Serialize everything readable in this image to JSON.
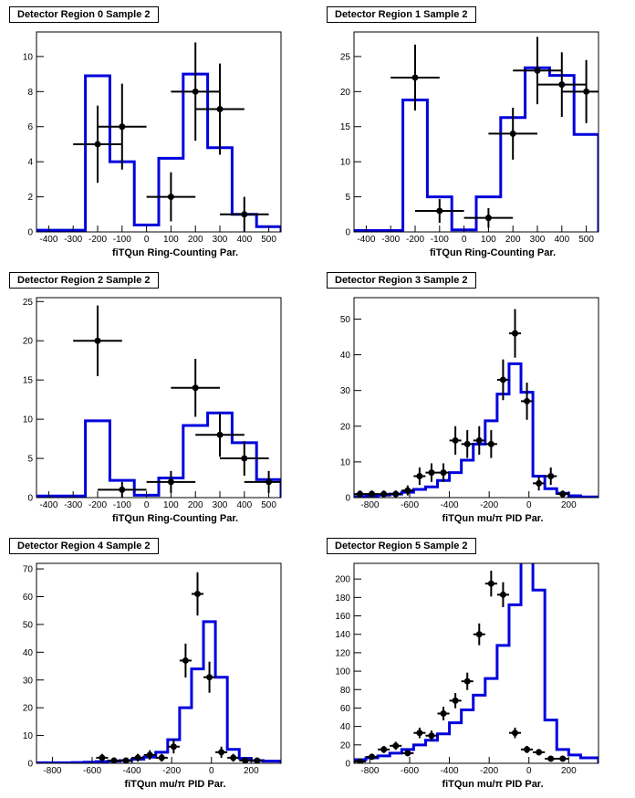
{
  "chart_data": [
    {
      "type": "histogram",
      "title": "Detector Region 0 Sample 2",
      "xlabel": "fiTQun Ring-Counting Par.",
      "xlim": [
        -450,
        550
      ],
      "ylim": [
        0,
        11.4
      ],
      "xticks": [
        -400,
        -300,
        -200,
        -100,
        0,
        100,
        200,
        300,
        400,
        500
      ],
      "yticks": [
        0,
        2,
        4,
        6,
        8,
        10
      ],
      "mc_edges": [
        -450,
        -250,
        -150,
        -50,
        50,
        150,
        250,
        350,
        450,
        550
      ],
      "mc_values": [
        0.1,
        8.9,
        4.0,
        0.4,
        4.2,
        9.0,
        4.8,
        1.0,
        0.3
      ],
      "data_points": [
        {
          "x": -200,
          "y": 5,
          "err": 2.2
        },
        {
          "x": -100,
          "y": 6,
          "err": 2.45
        },
        {
          "x": 100,
          "y": 2,
          "err": 1.4
        },
        {
          "x": 200,
          "y": 8,
          "err": 2.8
        },
        {
          "x": 300,
          "y": 7,
          "err": 2.6
        },
        {
          "x": 400,
          "y": 1,
          "err": 1.0
        }
      ]
    },
    {
      "type": "histogram",
      "title": "Detector Region 1 Sample 2",
      "xlabel": "fiTQun Ring-Counting Par.",
      "xlim": [
        -450,
        550
      ],
      "ylim": [
        0,
        28.5
      ],
      "xticks": [
        -400,
        -300,
        -200,
        -100,
        0,
        100,
        200,
        300,
        400,
        500
      ],
      "yticks": [
        0,
        5,
        10,
        15,
        20,
        25
      ],
      "mc_edges": [
        -450,
        -250,
        -150,
        -50,
        50,
        150,
        250,
        350,
        450,
        550
      ],
      "mc_values": [
        0.2,
        18.8,
        5.0,
        0.3,
        5.0,
        16.3,
        23.4,
        22.3,
        13.9
      ],
      "data_points": [
        {
          "x": -200,
          "y": 22,
          "err": 4.7
        },
        {
          "x": -100,
          "y": 3,
          "err": 1.7
        },
        {
          "x": 100,
          "y": 2,
          "err": 1.4
        },
        {
          "x": 200,
          "y": 14,
          "err": 3.7
        },
        {
          "x": 300,
          "y": 23,
          "err": 4.8
        },
        {
          "x": 400,
          "y": 21,
          "err": 4.6
        },
        {
          "x": 500,
          "y": 20,
          "err": 4.5
        }
      ]
    },
    {
      "type": "histogram",
      "title": "Detector Region 2 Sample 2",
      "xlabel": "fiTQun Ring-Counting Par.",
      "xlim": [
        -450,
        550
      ],
      "ylim": [
        0,
        25.5
      ],
      "xticks": [
        -400,
        -300,
        -200,
        -100,
        0,
        100,
        200,
        300,
        400,
        500
      ],
      "yticks": [
        0,
        5,
        10,
        15,
        20,
        25
      ],
      "mc_edges": [
        -450,
        -250,
        -150,
        -50,
        50,
        150,
        250,
        350,
        450,
        550
      ],
      "mc_values": [
        0.2,
        9.8,
        2.2,
        0.3,
        2.5,
        9.2,
        10.8,
        7.0,
        2.3
      ],
      "data_points": [
        {
          "x": -200,
          "y": 20,
          "err": 4.5
        },
        {
          "x": -100,
          "y": 1,
          "err": 1.0
        },
        {
          "x": 100,
          "y": 2,
          "err": 1.4
        },
        {
          "x": 200,
          "y": 14,
          "err": 3.7
        },
        {
          "x": 300,
          "y": 8,
          "err": 2.8
        },
        {
          "x": 400,
          "y": 5,
          "err": 2.2
        },
        {
          "x": 500,
          "y": 2,
          "err": 1.4
        }
      ]
    },
    {
      "type": "histogram",
      "title": "Detector Region 3 Sample 2",
      "xlabel": "fiTQun mu/π PID Par.",
      "xlim": [
        -880,
        350
      ],
      "ylim": [
        0,
        56
      ],
      "xticks": [
        -800,
        -600,
        -400,
        -200,
        0,
        200
      ],
      "yticks": [
        0,
        10,
        20,
        30,
        40,
        50
      ],
      "mc_edges": [
        -880,
        -820,
        -760,
        -700,
        -640,
        -580,
        -520,
        -460,
        -400,
        -340,
        -280,
        -220,
        -160,
        -100,
        -40,
        20,
        80,
        140,
        200,
        260,
        350
      ],
      "mc_values": [
        0.3,
        0.5,
        0.7,
        1.0,
        1.5,
        2.3,
        3.0,
        4.8,
        7.0,
        10.5,
        15.0,
        21.5,
        29.0,
        37.5,
        29.5,
        6.0,
        2.5,
        1.2,
        0.5,
        0.2
      ],
      "data_points": [
        {
          "x": -850,
          "y": 1,
          "err": 1.0
        },
        {
          "x": -790,
          "y": 1,
          "err": 1.0
        },
        {
          "x": -730,
          "y": 1,
          "err": 1.0
        },
        {
          "x": -670,
          "y": 1,
          "err": 1.0
        },
        {
          "x": -610,
          "y": 2,
          "err": 1.4
        },
        {
          "x": -550,
          "y": 6,
          "err": 2.45
        },
        {
          "x": -490,
          "y": 7,
          "err": 2.6
        },
        {
          "x": -430,
          "y": 7,
          "err": 2.6
        },
        {
          "x": -370,
          "y": 16,
          "err": 4.0
        },
        {
          "x": -310,
          "y": 15,
          "err": 3.9
        },
        {
          "x": -250,
          "y": 16,
          "err": 4.0
        },
        {
          "x": -190,
          "y": 15,
          "err": 3.9
        },
        {
          "x": -130,
          "y": 33,
          "err": 5.7
        },
        {
          "x": -70,
          "y": 46,
          "err": 6.8
        },
        {
          "x": -10,
          "y": 27,
          "err": 5.2
        },
        {
          "x": 50,
          "y": 4,
          "err": 2.0
        },
        {
          "x": 110,
          "y": 6,
          "err": 2.45
        },
        {
          "x": 170,
          "y": 1,
          "err": 1.0
        }
      ]
    },
    {
      "type": "histogram",
      "title": "Detector Region 4 Sample 2",
      "xlabel": "fiTQun mu/π PID Par.",
      "xlim": [
        -880,
        350
      ],
      "ylim": [
        0,
        72
      ],
      "xticks": [
        -800,
        -600,
        -400,
        -200,
        0,
        200
      ],
      "yticks": [
        0,
        10,
        20,
        30,
        40,
        50,
        60,
        70
      ],
      "mc_edges": [
        -880,
        -820,
        -760,
        -700,
        -640,
        -580,
        -520,
        -460,
        -400,
        -340,
        -280,
        -220,
        -160,
        -100,
        -40,
        20,
        80,
        140,
        200,
        260,
        350
      ],
      "mc_values": [
        0.2,
        0.2,
        0.2,
        0.3,
        0.4,
        0.6,
        0.8,
        1.0,
        1.5,
        2.2,
        4.0,
        8.5,
        20.0,
        34.0,
        51.0,
        31.0,
        5.0,
        1.8,
        1.0,
        0.8
      ],
      "data_points": [
        {
          "x": -550,
          "y": 2,
          "err": 1.4
        },
        {
          "x": -490,
          "y": 1,
          "err": 1.0
        },
        {
          "x": -430,
          "y": 1,
          "err": 1.0
        },
        {
          "x": -370,
          "y": 2,
          "err": 1.4
        },
        {
          "x": -310,
          "y": 3,
          "err": 1.7
        },
        {
          "x": -250,
          "y": 2,
          "err": 1.4
        },
        {
          "x": -190,
          "y": 6,
          "err": 2.45
        },
        {
          "x": -130,
          "y": 37,
          "err": 6.1
        },
        {
          "x": -70,
          "y": 61,
          "err": 7.8
        },
        {
          "x": -10,
          "y": 31,
          "err": 5.6
        },
        {
          "x": 50,
          "y": 4,
          "err": 2.0
        },
        {
          "x": 110,
          "y": 2,
          "err": 1.4
        },
        {
          "x": 170,
          "y": 1,
          "err": 1.0
        },
        {
          "x": 230,
          "y": 1,
          "err": 1.0
        }
      ]
    },
    {
      "type": "histogram",
      "title": "Detector Region 5 Sample 2",
      "xlabel": "fiTQun mu/π PID Par.",
      "xlim": [
        -880,
        350
      ],
      "ylim": [
        0,
        217
      ],
      "xticks": [
        -800,
        -600,
        -400,
        -200,
        0,
        200
      ],
      "yticks": [
        0,
        20,
        40,
        60,
        80,
        100,
        120,
        140,
        160,
        180,
        200
      ],
      "mc_edges": [
        -880,
        -820,
        -760,
        -700,
        -640,
        -580,
        -520,
        -460,
        -400,
        -340,
        -280,
        -220,
        -160,
        -100,
        -40,
        20,
        80,
        140,
        200,
        260,
        350
      ],
      "mc_values": [
        4,
        6,
        8,
        11,
        15,
        20,
        25,
        32,
        44,
        58,
        74,
        92,
        128,
        172,
        225,
        188,
        47,
        15,
        9,
        6
      ],
      "data_points": [
        {
          "x": -850,
          "y": 2,
          "err": 1.4
        },
        {
          "x": -790,
          "y": 7,
          "err": 2.6
        },
        {
          "x": -730,
          "y": 15,
          "err": 3.9
        },
        {
          "x": -670,
          "y": 19,
          "err": 4.4
        },
        {
          "x": -610,
          "y": 11,
          "err": 3.3
        },
        {
          "x": -550,
          "y": 33,
          "err": 5.7
        },
        {
          "x": -490,
          "y": 30,
          "err": 5.5
        },
        {
          "x": -430,
          "y": 54,
          "err": 7.3
        },
        {
          "x": -370,
          "y": 68,
          "err": 8.2
        },
        {
          "x": -310,
          "y": 89,
          "err": 9.4
        },
        {
          "x": -250,
          "y": 140,
          "err": 11.8
        },
        {
          "x": -190,
          "y": 195,
          "err": 14.0
        },
        {
          "x": -130,
          "y": 183,
          "err": 13.5
        },
        {
          "x": -70,
          "y": 33,
          "err": 5.7
        },
        {
          "x": -10,
          "y": 15,
          "err": 3.9
        },
        {
          "x": 50,
          "y": 12,
          "err": 3.5
        },
        {
          "x": 110,
          "y": 5,
          "err": 2.2
        },
        {
          "x": 170,
          "y": 5,
          "err": 2.2
        }
      ]
    }
  ],
  "style": {
    "mc_color": "#0000dd",
    "data_color": "#000000"
  }
}
